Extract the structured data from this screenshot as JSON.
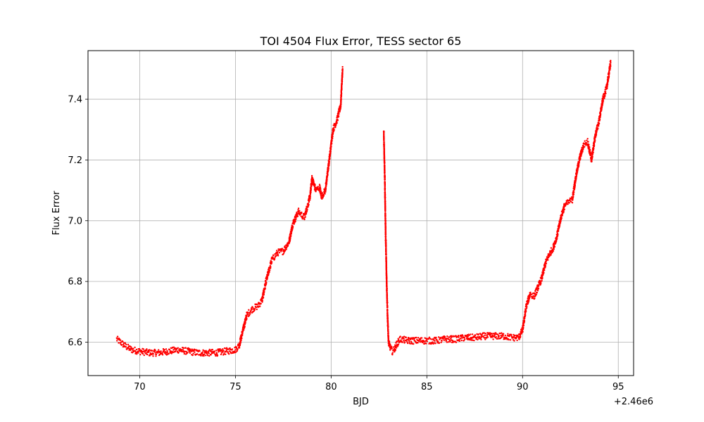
{
  "chart_data": {
    "type": "scatter",
    "title": "TOI 4504 Flux Error, TESS sector 65",
    "xlabel": "BJD",
    "ylabel": "Flux Error",
    "x_offset_label": "+2.46e6",
    "xlim": [
      67.3,
      95.8
    ],
    "ylim": [
      6.49,
      7.56
    ],
    "xticks": [
      70,
      75,
      80,
      85,
      90,
      95
    ],
    "xtick_labels": [
      "70",
      "75",
      "80",
      "85",
      "90",
      "95"
    ],
    "yticks": [
      6.6,
      6.8,
      7.0,
      7.2,
      7.4
    ],
    "ytick_labels": [
      "6.6",
      "6.8",
      "7.0",
      "7.2",
      "7.4"
    ],
    "grid": true,
    "marker_color": "#ff0000",
    "series": [
      {
        "segments": [
          {
            "x": [
              68.8,
              69.0,
              69.3,
              69.6,
              70.0,
              70.5,
              71.0,
              71.5,
              72.0,
              72.5,
              73.0,
              73.5,
              74.0,
              74.5,
              75.0,
              75.2,
              75.4,
              75.6,
              75.9,
              76.2,
              76.4,
              76.6,
              76.9,
              77.2,
              77.5,
              77.8,
              78.0,
              78.3,
              78.6,
              78.9,
              79.0,
              79.2,
              79.4,
              79.5,
              79.7,
              79.9,
              80.1,
              80.3,
              80.5,
              80.6
            ],
            "y": [
              6.61,
              6.6,
              6.585,
              6.575,
              6.57,
              6.565,
              6.565,
              6.57,
              6.575,
              6.57,
              6.565,
              6.565,
              6.565,
              6.57,
              6.575,
              6.59,
              6.64,
              6.69,
              6.71,
              6.72,
              6.74,
              6.8,
              6.87,
              6.895,
              6.9,
              6.93,
              6.99,
              7.03,
              7.01,
              7.08,
              7.14,
              7.1,
              7.11,
              7.08,
              7.1,
              7.2,
              7.3,
              7.33,
              7.38,
              7.5
            ]
          },
          {
            "x": [
              82.75,
              82.8,
              82.85,
              82.9,
              82.95,
              83.0,
              83.1,
              83.2,
              83.3,
              83.4,
              83.6,
              84.0,
              84.5,
              85.0,
              85.5,
              86.0,
              86.5,
              87.0,
              87.5,
              88.0,
              88.5,
              89.0,
              89.5,
              89.8,
              90.0,
              90.2,
              90.4,
              90.6,
              90.8,
              91.0,
              91.2,
              91.4,
              91.6,
              91.8,
              92.0,
              92.2,
              92.4,
              92.6,
              92.8,
              93.0,
              93.2,
              93.4,
              93.6,
              93.8,
              94.0,
              94.2,
              94.4,
              94.6
            ],
            "y": [
              7.29,
              7.15,
              6.95,
              6.8,
              6.68,
              6.6,
              6.58,
              6.57,
              6.575,
              6.59,
              6.61,
              6.605,
              6.605,
              6.605,
              6.605,
              6.61,
              6.61,
              6.615,
              6.615,
              6.62,
              6.62,
              6.62,
              6.615,
              6.615,
              6.64,
              6.72,
              6.76,
              6.75,
              6.78,
              6.81,
              6.86,
              6.89,
              6.91,
              6.95,
              7.01,
              7.05,
              7.06,
              7.07,
              7.15,
              7.21,
              7.25,
              7.26,
              7.2,
              7.28,
              7.33,
              7.4,
              7.44,
              7.52
            ]
          }
        ]
      }
    ]
  }
}
